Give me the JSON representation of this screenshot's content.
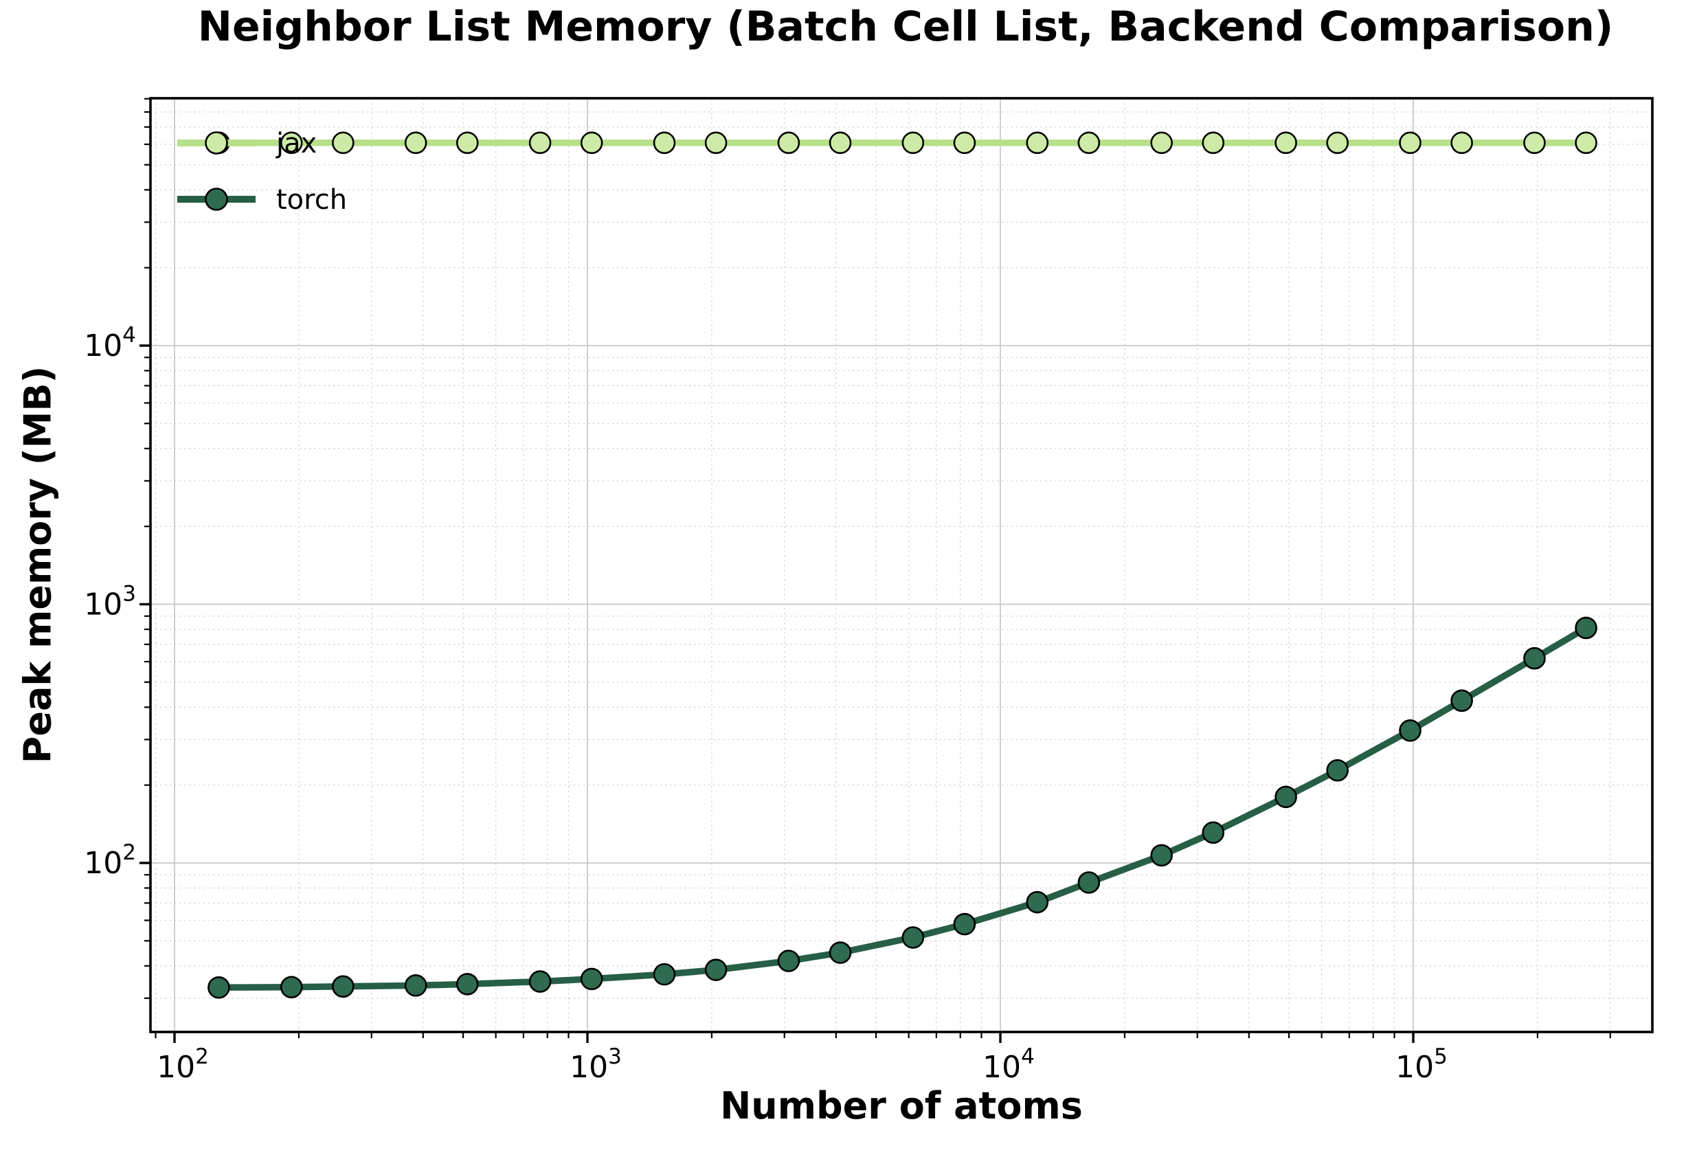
{
  "title": "Neighbor List Memory (Batch Cell List, Backend Comparison)",
  "xlabel": "Number of atoms",
  "ylabel": "Peak memory (MB)",
  "legend": {
    "position": "upper left",
    "frame": false,
    "entries": [
      {
        "label": "jax"
      },
      {
        "label": "torch"
      }
    ]
  },
  "chart_data": {
    "type": "line",
    "x_scale": "log",
    "y_scale": "log",
    "grid": true,
    "xlim": [
      87.5,
      380000
    ],
    "ylim": [
      22.2,
      90400
    ],
    "x": [
      128,
      192,
      256,
      384,
      512,
      768,
      1024,
      1536,
      2048,
      3072,
      4096,
      6144,
      8192,
      12288,
      16384,
      24576,
      32768,
      49152,
      65536,
      98304,
      131072,
      196608,
      262144
    ],
    "series": [
      {
        "name": "jax",
        "color": "#b7e08a",
        "marker_fill": "#cdeba6",
        "values": [
          60800,
          60800,
          60800,
          60800,
          60800,
          60800,
          60800,
          60800,
          60800,
          60800,
          60800,
          60800,
          60800,
          60800,
          60800,
          60800,
          60800,
          60800,
          60800,
          60800,
          60800,
          60800,
          60800
        ]
      },
      {
        "name": "torch",
        "color": "#265f45",
        "marker_fill": "#2e6b50",
        "values": [
          33,
          33.1,
          33.3,
          33.6,
          34,
          34.8,
          35.6,
          37.1,
          38.6,
          41.8,
          45,
          51.5,
          58,
          70.5,
          84,
          107,
          131,
          180,
          228,
          325,
          424,
          618,
          810
        ]
      }
    ],
    "x_ticks": [
      {
        "value": 100,
        "base": "10",
        "exp": "2"
      },
      {
        "value": 1000,
        "base": "10",
        "exp": "3"
      },
      {
        "value": 10000,
        "base": "10",
        "exp": "4"
      },
      {
        "value": 100000,
        "base": "10",
        "exp": "5"
      }
    ],
    "y_ticks": [
      {
        "value": 100,
        "base": "10",
        "exp": "2"
      },
      {
        "value": 1000,
        "base": "10",
        "exp": "3"
      },
      {
        "value": 10000,
        "base": "10",
        "exp": "4"
      }
    ],
    "colors": {
      "spine": "#000000",
      "major_grid": "#c8c8c8",
      "minor_grid": "#d4d4d4",
      "marker_edge": "#000000"
    }
  }
}
